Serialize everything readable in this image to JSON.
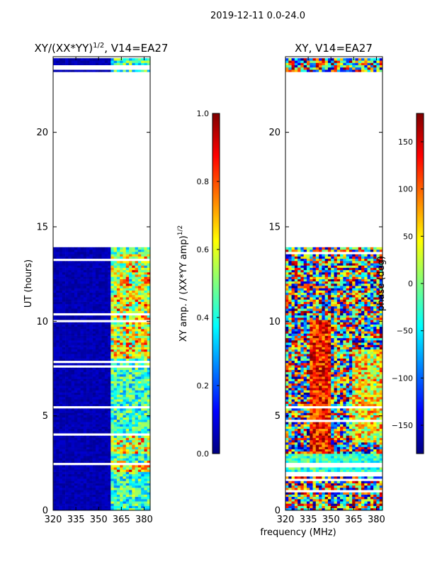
{
  "suptitle": "2019-12-11 0.0-24.0",
  "xlabel_shared": "frequency (MHz)",
  "colors": {
    "jet": [
      "#00007f",
      "#0000ff",
      "#007fff",
      "#00ffff",
      "#7fff7f",
      "#ffff00",
      "#ff7f00",
      "#ff0000",
      "#7f0000"
    ]
  },
  "chart_data": [
    {
      "type": "heatmap",
      "id": "left",
      "title": "XY/(XX*YY)",
      "title_sup": "1/2",
      "title_suffix": ", V14=EA27",
      "ylabel": "UT (hours)",
      "xlim": [
        320,
        384
      ],
      "ylim": [
        0,
        24
      ],
      "xticks": [
        320,
        335,
        350,
        365,
        380
      ],
      "yticks": [
        0,
        5,
        10,
        15,
        20
      ],
      "data_rows_hours": [
        [
          0.0,
          13.8
        ],
        [
          23.2,
          23.9
        ]
      ],
      "colorbar": {
        "label": "XY amp. / (XX*YY amp)",
        "label_sup": "1/2",
        "range": [
          0.0,
          1.0
        ],
        "ticks": [
          0.0,
          0.2,
          0.4,
          0.6,
          0.8,
          1.0
        ],
        "tick_labels": [
          "0.0",
          "0.2",
          "0.4",
          "0.6",
          "0.8",
          "1.0"
        ]
      }
    },
    {
      "type": "heatmap",
      "id": "right",
      "title": "XY, V14=EA27",
      "ylabel": "",
      "xlim": [
        320,
        384
      ],
      "ylim": [
        0,
        24
      ],
      "xticks": [
        320,
        335,
        350,
        365,
        380
      ],
      "yticks": [
        0,
        5,
        10,
        15,
        20
      ],
      "data_rows_hours": [
        [
          0.0,
          13.8
        ],
        [
          23.2,
          23.9
        ]
      ],
      "colorbar": {
        "label": "phase (deg)",
        "range": [
          -180,
          180
        ],
        "ticks": [
          -150,
          -100,
          -50,
          0,
          50,
          100,
          150
        ],
        "tick_labels": [
          "−150",
          "−100",
          "−50",
          "0",
          "50",
          "100",
          "150"
        ]
      }
    }
  ]
}
